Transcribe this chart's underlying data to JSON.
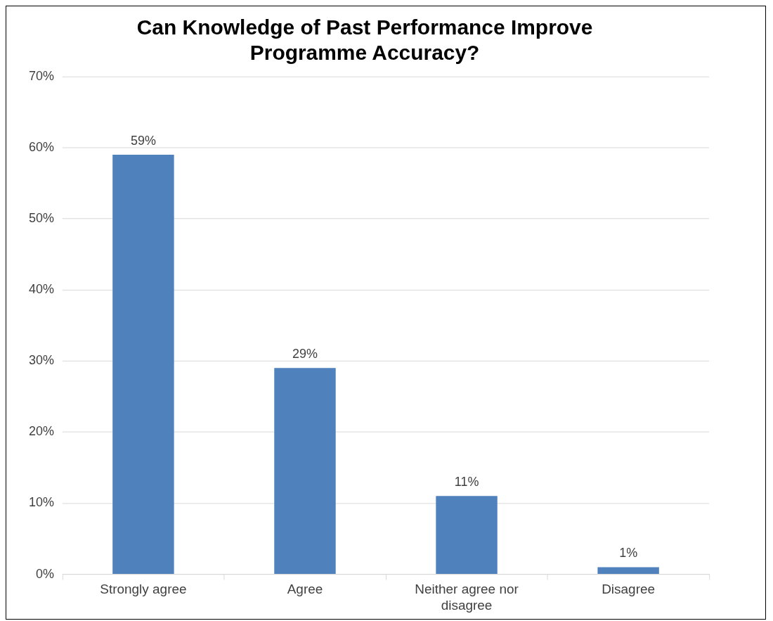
{
  "chart_data": {
    "type": "bar",
    "title": "Can Knowledge of Past Performance Improve Programme Accuracy?",
    "categories": [
      "Strongly agree",
      "Agree",
      "Neither agree nor disagree",
      "Disagree"
    ],
    "values": [
      59,
      29,
      11,
      1
    ],
    "value_labels": [
      "59%",
      "29%",
      "11%",
      "1%"
    ],
    "color": "#4f81bd",
    "ylim": [
      0,
      70
    ],
    "yticks": [
      {
        "value": 0,
        "label": "0%"
      },
      {
        "value": 10,
        "label": "10%"
      },
      {
        "value": 20,
        "label": "20%"
      },
      {
        "value": 30,
        "label": "30%"
      },
      {
        "value": 40,
        "label": "40%"
      },
      {
        "value": 50,
        "label": "50%"
      },
      {
        "value": 60,
        "label": "60%"
      },
      {
        "value": 70,
        "label": "70%"
      }
    ],
    "grid": "y",
    "legend": false
  }
}
